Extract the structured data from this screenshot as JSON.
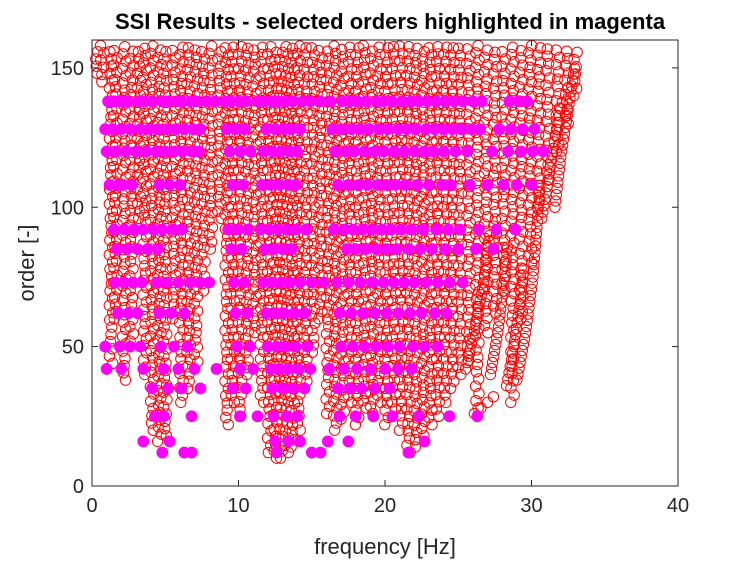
{
  "colors": {
    "stable_marker": "#ff0000",
    "selected_marker": "#ff00ff",
    "axis": "#262626",
    "background": "#ffffff"
  },
  "chart_data": {
    "type": "scatter",
    "title": "SSI Results - selected orders highlighted in magenta",
    "xlabel": "frequency [Hz]",
    "ylabel": "order [-]",
    "xlim": [
      0,
      40
    ],
    "ylim": [
      0,
      160
    ],
    "xticks": [
      "0",
      "10",
      "20",
      "30",
      "40"
    ],
    "yticks": [
      "0",
      "50",
      "100",
      "150"
    ],
    "grid": false,
    "legend": "none",
    "marker_note": "red open circles = stabilization poles; filled magenta circles = selected orders",
    "series": [
      {
        "name": "selected orders",
        "marker": "filled-circle",
        "rows": [
          {
            "order": 138,
            "x": [
              1.1,
              1.3,
              1.5,
              1.9,
              2.2,
              2.5,
              3.2,
              3.6,
              4.1,
              4.8,
              5.2,
              5.8,
              6.2,
              6.7,
              7.1,
              7.8,
              8.4,
              9.1,
              9.5,
              10.0,
              10.5,
              11.3,
              11.8,
              12.3,
              12.7,
              13.2,
              13.7,
              14.4,
              14.9,
              15.6,
              16.3,
              17.1,
              17.6,
              18.1,
              18.7,
              19.4,
              19.9,
              20.5,
              21.2,
              21.8,
              22.3,
              22.9,
              23.5,
              24.1,
              24.7,
              25.3,
              26.0,
              26.6,
              28.5,
              29.1,
              29.7
            ]
          },
          {
            "order": 128,
            "x": [
              0.9,
              1.4,
              2.0,
              2.6,
              3.3,
              3.9,
              4.5,
              5.1,
              5.7,
              6.3,
              6.9,
              7.4,
              9.2,
              9.8,
              10.4,
              11.9,
              12.5,
              13.1,
              13.6,
              14.2,
              16.4,
              17.0,
              17.7,
              18.3,
              18.9,
              19.6,
              20.2,
              20.9,
              21.5,
              22.1,
              22.8,
              23.4,
              24.0,
              24.6,
              25.2,
              25.9,
              26.5,
              27.8,
              28.6,
              29.4,
              30.2
            ]
          },
          {
            "order": 120,
            "x": [
              1.0,
              1.6,
              2.3,
              3.0,
              3.7,
              4.4,
              5.0,
              5.6,
              6.2,
              6.8,
              7.3,
              9.4,
              10.1,
              10.8,
              11.7,
              12.3,
              12.9,
              13.5,
              14.0,
              16.6,
              17.3,
              17.9,
              18.6,
              19.3,
              19.9,
              20.6,
              21.3,
              22.0,
              22.7,
              23.3,
              24.0,
              24.8,
              25.6,
              27.3,
              28.4,
              29.3,
              30.1,
              30.8
            ]
          },
          {
            "order": 108,
            "x": [
              1.2,
              1.8,
              2.1,
              2.7,
              4.6,
              5.3,
              6.0,
              9.6,
              10.3,
              11.6,
              12.2,
              12.8,
              13.4,
              13.9,
              16.8,
              17.5,
              18.2,
              18.8,
              19.5,
              20.1,
              20.7,
              21.4,
              22.2,
              23.0,
              23.9,
              24.5,
              25.8,
              27.0,
              28.1,
              29.0,
              30.0
            ]
          },
          {
            "order": 92,
            "x": [
              1.5,
              2.2,
              2.9,
              3.5,
              4.2,
              4.8,
              5.5,
              6.1,
              9.3,
              9.9,
              10.6,
              11.5,
              12.1,
              12.7,
              13.3,
              13.9,
              14.6,
              16.5,
              17.2,
              17.8,
              18.5,
              19.1,
              19.8,
              20.4,
              21.1,
              21.8,
              22.6,
              23.5,
              24.3,
              25.1,
              26.4,
              27.6,
              28.9
            ]
          },
          {
            "order": 85,
            "x": [
              1.7,
              2.4,
              3.1,
              3.8,
              4.5,
              9.5,
              10.2,
              11.8,
              12.4,
              13.0,
              13.6,
              17.4,
              18.0,
              18.7,
              19.4,
              20.1,
              20.8,
              21.6,
              22.4,
              23.2,
              24.1,
              25.0,
              26.2,
              27.4
            ]
          },
          {
            "order": 73,
            "x": [
              1.6,
              2.2,
              2.8,
              3.4,
              4.4,
              5.1,
              5.9,
              6.7,
              7.4,
              8.0,
              9.7,
              10.4,
              11.7,
              12.3,
              12.9,
              13.5,
              14.2,
              15.0,
              15.8,
              16.7,
              17.5,
              18.3,
              19.1,
              19.9,
              20.6,
              21.3,
              22.0,
              22.8,
              23.6,
              24.4,
              25.3
            ]
          },
          {
            "order": 62,
            "x": [
              1.8,
              2.5,
              3.1,
              4.6,
              5.4,
              6.3,
              9.8,
              10.6,
              11.9,
              12.5,
              13.1,
              13.8,
              14.5,
              16.9,
              17.7,
              18.5,
              19.3,
              20.1,
              20.9,
              21.7,
              22.5,
              23.4,
              24.2
            ]
          },
          {
            "order": 50,
            "x": [
              0.9,
              1.9,
              2.6,
              3.3,
              4.7,
              5.6,
              6.5,
              9.9,
              10.8,
              12.0,
              12.6,
              13.2,
              13.9,
              14.7,
              17.0,
              17.8,
              18.6,
              19.4,
              20.2,
              21.0,
              21.9,
              22.7,
              23.6
            ]
          },
          {
            "order": 42,
            "x": [
              1.0,
              2.0,
              3.5,
              4.9,
              5.9,
              7.0,
              8.5,
              10.1,
              11.0,
              12.2,
              12.8,
              13.4,
              14.1,
              14.9,
              16.2,
              17.2,
              18.1,
              19.0,
              20.0,
              20.9,
              21.8
            ]
          },
          {
            "order": 35,
            "x": [
              4.1,
              5.2,
              6.1,
              7.4,
              9.6,
              10.5,
              12.3,
              13.0,
              13.7,
              14.5,
              16.8,
              17.6,
              18.4,
              19.3,
              20.3
            ]
          },
          {
            "order": 25,
            "x": [
              4.3,
              4.9,
              6.8,
              10.1,
              11.3,
              12.4,
              13.3,
              14.0,
              16.9,
              18.0,
              19.2,
              20.5,
              22.3,
              24.4,
              26.3
            ]
          },
          {
            "order": 16,
            "x": [
              3.5,
              5.3,
              12.5,
              13.4,
              14.2,
              16.1,
              17.5,
              22.7
            ]
          },
          {
            "order": 12,
            "x": [
              4.8,
              6.3,
              6.8,
              12.6,
              15.0,
              15.6,
              21.6
            ]
          }
        ]
      },
      {
        "name": "stable poles",
        "marker": "open-circle",
        "columns": [
          {
            "x": 0.3,
            "from": 148,
            "to": 158
          },
          {
            "x": 0.7,
            "from": 145,
            "to": 158
          },
          {
            "x": 1.3,
            "from": 44,
            "to": 158
          },
          {
            "x": 1.6,
            "from": 60,
            "to": 158
          },
          {
            "x": 2.2,
            "from": 38,
            "to": 158
          },
          {
            "x": 2.7,
            "from": 52,
            "to": 158
          },
          {
            "x": 3.2,
            "from": 96,
            "to": 158
          },
          {
            "x": 3.6,
            "from": 40,
            "to": 158
          },
          {
            "x": 4.1,
            "from": 20,
            "to": 158
          },
          {
            "x": 4.6,
            "from": 16,
            "to": 158
          },
          {
            "x": 5.0,
            "from": 18,
            "to": 158
          },
          {
            "x": 5.6,
            "from": 60,
            "to": 158
          },
          {
            "x": 6.1,
            "from": 30,
            "to": 158
          },
          {
            "x": 6.6,
            "from": 35,
            "to": 158
          },
          {
            "x": 7.1,
            "from": 42,
            "to": 158
          },
          {
            "x": 7.6,
            "from": 70,
            "to": 158
          },
          {
            "x": 8.1,
            "from": 85,
            "to": 158
          },
          {
            "x": 8.7,
            "from": 96,
            "to": 158
          },
          {
            "x": 9.2,
            "from": 22,
            "to": 158
          },
          {
            "x": 9.6,
            "from": 30,
            "to": 158
          },
          {
            "x": 10.1,
            "from": 25,
            "to": 158
          },
          {
            "x": 10.6,
            "from": 40,
            "to": 158
          },
          {
            "x": 11.1,
            "from": 55,
            "to": 158
          },
          {
            "x": 11.6,
            "from": 30,
            "to": 158
          },
          {
            "x": 12.1,
            "from": 12,
            "to": 158
          },
          {
            "x": 12.5,
            "from": 10,
            "to": 158
          },
          {
            "x": 12.9,
            "from": 10,
            "to": 158
          },
          {
            "x": 13.3,
            "from": 12,
            "to": 158
          },
          {
            "x": 13.7,
            "from": 14,
            "to": 158
          },
          {
            "x": 14.1,
            "from": 20,
            "to": 158
          },
          {
            "x": 14.6,
            "from": 35,
            "to": 158
          },
          {
            "x": 15.1,
            "from": 48,
            "to": 158
          },
          {
            "x": 15.6,
            "from": 60,
            "to": 158
          },
          {
            "x": 16.1,
            "from": 26,
            "to": 158
          },
          {
            "x": 16.6,
            "from": 20,
            "to": 158
          },
          {
            "x": 17.1,
            "from": 24,
            "to": 158
          },
          {
            "x": 17.6,
            "from": 30,
            "to": 158
          },
          {
            "x": 18.1,
            "from": 22,
            "to": 158
          },
          {
            "x": 18.6,
            "from": 28,
            "to": 158
          },
          {
            "x": 19.1,
            "from": 26,
            "to": 158
          },
          {
            "x": 19.6,
            "from": 30,
            "to": 158
          },
          {
            "x": 20.1,
            "from": 22,
            "to": 158
          },
          {
            "x": 20.6,
            "from": 25,
            "to": 158
          },
          {
            "x": 21.1,
            "from": 20,
            "to": 158
          },
          {
            "x": 21.6,
            "from": 12,
            "to": 158
          },
          {
            "x": 22.1,
            "from": 14,
            "to": 158
          },
          {
            "x": 22.6,
            "from": 18,
            "to": 158
          },
          {
            "x": 23.1,
            "from": 22,
            "to": 158
          },
          {
            "x": 23.6,
            "from": 25,
            "to": 158
          },
          {
            "x": 24.1,
            "from": 30,
            "to": 158
          },
          {
            "x": 24.6,
            "from": 35,
            "to": 158
          },
          {
            "x": 25.1,
            "from": 40,
            "to": 158
          },
          {
            "x": 25.7,
            "from": 45,
            "to": 158
          },
          {
            "x": 26.3,
            "from": 28,
            "to": 158
          },
          {
            "x": 26.9,
            "from": 55,
            "to": 158
          },
          {
            "x": 27.5,
            "from": 62,
            "to": 158
          },
          {
            "x": 28.1,
            "from": 70,
            "to": 158
          },
          {
            "x": 28.7,
            "from": 30,
            "to": 158
          },
          {
            "x": 29.3,
            "from": 60,
            "to": 158
          },
          {
            "x": 29.9,
            "from": 80,
            "to": 158
          },
          {
            "x": 30.5,
            "from": 100,
            "to": 158
          },
          {
            "x": 31.1,
            "from": 110,
            "to": 158
          },
          {
            "x": 31.8,
            "from": 120,
            "to": 158
          },
          {
            "x": 32.4,
            "from": 130,
            "to": 158
          },
          {
            "x": 33.0,
            "from": 140,
            "to": 158
          }
        ],
        "curves": [
          {
            "points": [
              [
                26.1,
                26
              ],
              [
                27.0,
                30
              ],
              [
                27.8,
                34
              ]
            ]
          },
          {
            "points": [
              [
                29.0,
                38
              ],
              [
                29.6,
                55
              ],
              [
                30.1,
                75
              ],
              [
                30.4,
                95
              ],
              [
                30.6,
                110
              ]
            ]
          },
          {
            "points": [
              [
                28.3,
                36
              ],
              [
                28.8,
                50
              ],
              [
                29.2,
                65
              ],
              [
                29.5,
                80
              ]
            ]
          },
          {
            "points": [
              [
                27.2,
                40
              ],
              [
                27.7,
                55
              ],
              [
                28.1,
                72
              ],
              [
                28.4,
                88
              ]
            ]
          },
          {
            "points": [
              [
                25.5,
                42
              ],
              [
                26.2,
                58
              ],
              [
                26.8,
                75
              ],
              [
                27.2,
                92
              ]
            ]
          },
          {
            "points": [
              [
                30.7,
                96
              ],
              [
                31.2,
                112
              ],
              [
                31.7,
                128
              ],
              [
                32.2,
                140
              ]
            ]
          },
          {
            "points": [
              [
                31.6,
                100
              ],
              [
                32.0,
                118
              ],
              [
                32.5,
                135
              ],
              [
                33.0,
                152
              ]
            ]
          }
        ]
      }
    ]
  }
}
